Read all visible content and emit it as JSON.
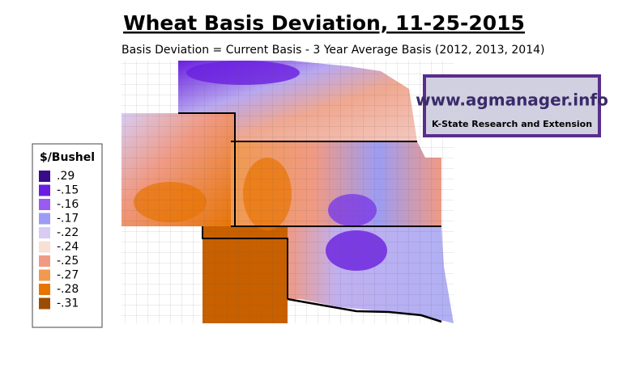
{
  "title": "Wheat Basis Deviation, 11-25-2015",
  "subtitle": "Basis Deviation = Current Basis - 3 Year Average Basis (2012, 2013, 2014)",
  "legend": {
    "title": "$/Bushel",
    "items": [
      {
        "label": ".29",
        "color": "#3a0a8c"
      },
      {
        "label": "-.15",
        "color": "#6a1ee0"
      },
      {
        "label": "-.16",
        "color": "#9a5cf0"
      },
      {
        "label": "-.17",
        "color": "#9c9cf4"
      },
      {
        "label": "-.22",
        "color": "#d8ccf4"
      },
      {
        "label": "-.24",
        "color": "#f8e0d4"
      },
      {
        "label": "-.25",
        "color": "#f09a84"
      },
      {
        "label": "-.27",
        "color": "#f09a50"
      },
      {
        "label": "-.28",
        "color": "#e87400"
      },
      {
        "label": "-.31",
        "color": "#9c4c00"
      }
    ]
  },
  "logo": {
    "url": "www.agmanager.info",
    "org": "K-State Research and Extension"
  }
}
